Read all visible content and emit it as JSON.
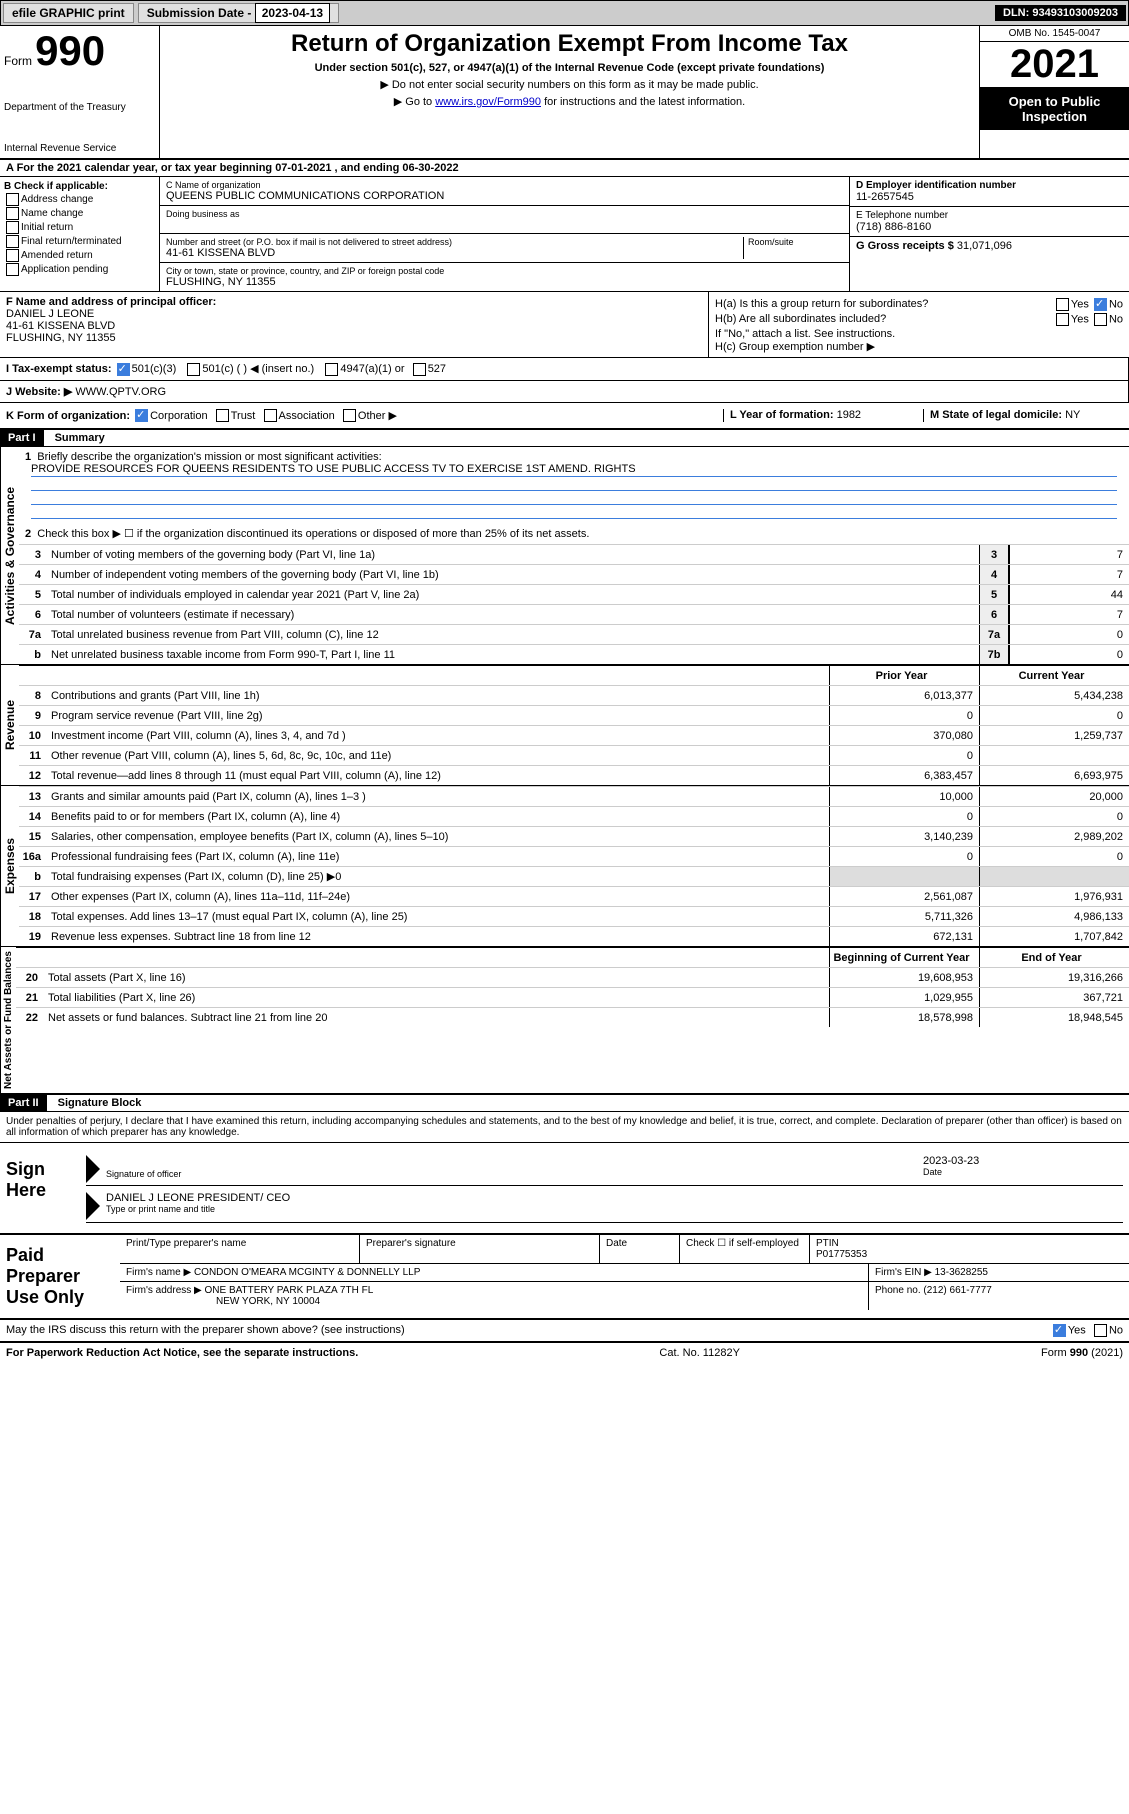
{
  "colors": {
    "link": "#0000cc",
    "checkbox_fill": "#3b7ddd",
    "header_bg": "#000000",
    "header_fg": "#ffffff",
    "grey_bg": "#dddddd",
    "topbar_bg": "#cccccc"
  },
  "topbar": {
    "efile": "efile GRAPHIC print",
    "sub_label": "Submission Date - ",
    "sub_date": "2023-04-13",
    "dln": "DLN: 93493103009203"
  },
  "header": {
    "form_word": "Form",
    "form_num": "990",
    "dept": "Department of the Treasury",
    "irs": "Internal Revenue Service",
    "title": "Return of Organization Exempt From Income Tax",
    "subtitle": "Under section 501(c), 527, or 4947(a)(1) of the Internal Revenue Code (except private foundations)",
    "note1": "▶ Do not enter social security numbers on this form as it may be made public.",
    "note2_pre": "▶ Go to ",
    "note2_link": "www.irs.gov/Form990",
    "note2_post": " for instructions and the latest information.",
    "omb": "OMB No. 1545-0047",
    "year": "2021",
    "open": "Open to Public Inspection"
  },
  "row_a": "A For the 2021 calendar year, or tax year beginning 07-01-2021   , and ending 06-30-2022",
  "col_b": {
    "title": "B Check if applicable:",
    "opts": [
      "Address change",
      "Name change",
      "Initial return",
      "Final return/terminated",
      "Amended return",
      "Application pending"
    ]
  },
  "col_c": {
    "name_label": "C Name of organization",
    "name": "QUEENS PUBLIC COMMUNICATIONS CORPORATION",
    "dba_label": "Doing business as",
    "dba": "",
    "addr_label": "Number and street (or P.O. box if mail is not delivered to street address)",
    "room_label": "Room/suite",
    "addr": "41-61 KISSENA BLVD",
    "city_label": "City or town, state or province, country, and ZIP or foreign postal code",
    "city": "FLUSHING, NY  11355"
  },
  "col_de": {
    "ein_label": "D Employer identification number",
    "ein": "11-2657545",
    "tel_label": "E Telephone number",
    "tel": "(718) 886-8160",
    "gross_label": "G Gross receipts $",
    "gross": "31,071,096"
  },
  "sec_f": {
    "label": "F Name and address of principal officer:",
    "name": "DANIEL J LEONE",
    "addr1": "41-61 KISSENA BLVD",
    "addr2": "FLUSHING, NY  11355"
  },
  "sec_h": {
    "a": "H(a)  Is this a group return for subordinates?",
    "a_ans": "No",
    "b": "H(b)  Are all subordinates included?",
    "b_note": "If \"No,\" attach a list. See instructions.",
    "c": "H(c)  Group exemption number ▶"
  },
  "sec_i": {
    "label": "I   Tax-exempt status:",
    "o1": "501(c)(3)",
    "o2": "501(c) (  ) ◀ (insert no.)",
    "o3": "4947(a)(1) or",
    "o4": "527"
  },
  "sec_j": {
    "label": "J   Website: ▶",
    "val": "WWW.QPTV.ORG"
  },
  "sec_k": {
    "label": "K Form of organization:",
    "o1": "Corporation",
    "o2": "Trust",
    "o3": "Association",
    "o4": "Other ▶"
  },
  "sec_l": {
    "label": "L Year of formation:",
    "val": "1982"
  },
  "sec_m": {
    "label": "M State of legal domicile:",
    "val": "NY"
  },
  "part1": {
    "header": "Part I",
    "title": "Summary",
    "q1": "Briefly describe the organization's mission or most significant activities:",
    "mission": "PROVIDE RESOURCES FOR QUEENS RESIDENTS TO USE PUBLIC ACCESS TV TO EXERCISE 1ST AMEND. RIGHTS",
    "q2": "Check this box ▶ ☐ if the organization discontinued its operations or disposed of more than 25% of its net assets."
  },
  "gov_lines": [
    {
      "n": "3",
      "t": "Number of voting members of the governing body (Part VI, line 1a)",
      "box": "3",
      "v": "7"
    },
    {
      "n": "4",
      "t": "Number of independent voting members of the governing body (Part VI, line 1b)",
      "box": "4",
      "v": "7"
    },
    {
      "n": "5",
      "t": "Total number of individuals employed in calendar year 2021 (Part V, line 2a)",
      "box": "5",
      "v": "44"
    },
    {
      "n": "6",
      "t": "Total number of volunteers (estimate if necessary)",
      "box": "6",
      "v": "7"
    },
    {
      "n": "7a",
      "t": "Total unrelated business revenue from Part VIII, column (C), line 12",
      "box": "7a",
      "v": "0"
    },
    {
      "n": "b",
      "t": "Net unrelated business taxable income from Form 990-T, Part I, line 11",
      "box": "7b",
      "v": "0"
    }
  ],
  "col_headers": {
    "prior": "Prior Year",
    "current": "Current Year"
  },
  "revenue_label": "Revenue",
  "revenue_lines": [
    {
      "n": "8",
      "t": "Contributions and grants (Part VIII, line 1h)",
      "p": "6,013,377",
      "c": "5,434,238"
    },
    {
      "n": "9",
      "t": "Program service revenue (Part VIII, line 2g)",
      "p": "0",
      "c": "0"
    },
    {
      "n": "10",
      "t": "Investment income (Part VIII, column (A), lines 3, 4, and 7d )",
      "p": "370,080",
      "c": "1,259,737"
    },
    {
      "n": "11",
      "t": "Other revenue (Part VIII, column (A), lines 5, 6d, 8c, 9c, 10c, and 11e)",
      "p": "0",
      "c": ""
    },
    {
      "n": "12",
      "t": "Total revenue—add lines 8 through 11 (must equal Part VIII, column (A), line 12)",
      "p": "6,383,457",
      "c": "6,693,975"
    }
  ],
  "expenses_label": "Expenses",
  "expenses_lines": [
    {
      "n": "13",
      "t": "Grants and similar amounts paid (Part IX, column (A), lines 1–3 )",
      "p": "10,000",
      "c": "20,000"
    },
    {
      "n": "14",
      "t": "Benefits paid to or for members (Part IX, column (A), line 4)",
      "p": "0",
      "c": "0"
    },
    {
      "n": "15",
      "t": "Salaries, other compensation, employee benefits (Part IX, column (A), lines 5–10)",
      "p": "3,140,239",
      "c": "2,989,202"
    },
    {
      "n": "16a",
      "t": "Professional fundraising fees (Part IX, column (A), line 11e)",
      "p": "0",
      "c": "0"
    },
    {
      "n": "b",
      "t": "Total fundraising expenses (Part IX, column (D), line 25) ▶0",
      "p": "",
      "c": "",
      "grey": true
    },
    {
      "n": "17",
      "t": "Other expenses (Part IX, column (A), lines 11a–11d, 11f–24e)",
      "p": "2,561,087",
      "c": "1,976,931"
    },
    {
      "n": "18",
      "t": "Total expenses. Add lines 13–17 (must equal Part IX, column (A), line 25)",
      "p": "5,711,326",
      "c": "4,986,133"
    },
    {
      "n": "19",
      "t": "Revenue less expenses. Subtract line 18 from line 12",
      "p": "672,131",
      "c": "1,707,842"
    }
  ],
  "net_label": "Net Assets or Fund Balances",
  "net_headers": {
    "begin": "Beginning of Current Year",
    "end": "End of Year"
  },
  "net_lines": [
    {
      "n": "20",
      "t": "Total assets (Part X, line 16)",
      "p": "19,608,953",
      "c": "19,316,266"
    },
    {
      "n": "21",
      "t": "Total liabilities (Part X, line 26)",
      "p": "1,029,955",
      "c": "367,721"
    },
    {
      "n": "22",
      "t": "Net assets or fund balances. Subtract line 21 from line 20",
      "p": "18,578,998",
      "c": "18,948,545"
    }
  ],
  "part2": {
    "header": "Part II",
    "title": "Signature Block",
    "decl": "Under penalties of perjury, I declare that I have examined this return, including accompanying schedules and statements, and to the best of my knowledge and belief, it is true, correct, and complete. Declaration of preparer (other than officer) is based on all information of which preparer has any knowledge."
  },
  "sign": {
    "here": "Sign Here",
    "sig_label": "Signature of officer",
    "date_label": "Date",
    "date": "2023-03-23",
    "name": "DANIEL J LEONE  PRESIDENT/ CEO",
    "name_label": "Type or print name and title"
  },
  "paid": {
    "title": "Paid Preparer Use Only",
    "h1": "Print/Type preparer's name",
    "h2": "Preparer's signature",
    "h3": "Date",
    "h4_a": "Check ☐ if self-employed",
    "h4_b": "PTIN",
    "ptin": "P01775353",
    "firm_label": "Firm's name    ▶",
    "firm": "CONDON O'MEARA MCGINTY & DONNELLY LLP",
    "ein_label": "Firm's EIN ▶",
    "ein": "13-3628255",
    "addr_label": "Firm's address ▶",
    "addr1": "ONE BATTERY PARK PLAZA 7TH FL",
    "addr2": "NEW YORK, NY  10004",
    "phone_label": "Phone no.",
    "phone": "(212) 661-7777"
  },
  "discuss": "May the IRS discuss this return with the preparer shown above? (see instructions)",
  "discuss_ans": "Yes",
  "footer": {
    "left": "For Paperwork Reduction Act Notice, see the separate instructions.",
    "mid": "Cat. No. 11282Y",
    "right": "Form 990 (2021)"
  }
}
